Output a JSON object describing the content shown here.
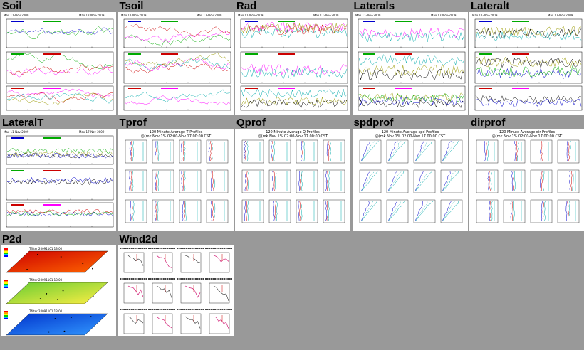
{
  "cells": [
    {
      "title": "Soil",
      "kind": "ts3",
      "captions": [
        "Max 11-Nov-2009",
        "Max 17-Nov-2009"
      ]
    },
    {
      "title": "Tsoil",
      "kind": "ts3",
      "captions": [
        "Max 11-Nov-2009",
        "Max 17-Nov-2009"
      ]
    },
    {
      "title": "Rad",
      "kind": "ts3",
      "captions": [
        "Max 11-Nov-2009",
        "Max 17-Nov-2009"
      ]
    },
    {
      "title": "Laterals",
      "kind": "ts3",
      "captions": [
        "Max 11-Nov-2009",
        "Max 17-Nov-2009"
      ]
    },
    {
      "title": "Lateralt",
      "kind": "ts3",
      "captions": [
        "Max 11-Nov-2009",
        "Max 17-Nov-2009"
      ]
    },
    {
      "title": "LateralT",
      "kind": "ts3",
      "captions": [
        "Max 11-Nov-2009",
        "Max 17-Nov-2009"
      ]
    },
    {
      "title": "Tprof",
      "kind": "prof",
      "heading": "120 Minute Average T Profiles",
      "subheading": "@(mk Nov 1% 02:00-Nov 17 00:00 CST"
    },
    {
      "title": "Qprof",
      "kind": "prof",
      "heading": "120 Minute Average Q Profiles",
      "subheading": "@(mk Nov 1% 02:00-Nov 17 00:00 CST"
    },
    {
      "title": "spdprof",
      "kind": "prof",
      "heading": "120 Minute Average spd Profiles",
      "subheading": "@(mk Nov 1% 02:00-Nov 17 00:00 CST"
    },
    {
      "title": "dirprof",
      "kind": "prof",
      "heading": "120 Minute Average dir Profiles",
      "subheading": "@(mk Nov 1% 02:00-Nov 17 00:00 CST"
    },
    {
      "title": "P2d",
      "kind": "p2d",
      "captions": [
        "Tfilter 20091101 13:00",
        "Tfilter 20091101 13:00",
        "Tfilter 20091101 13:00"
      ]
    },
    {
      "title": "Wind2d",
      "kind": "wind2d"
    }
  ]
}
